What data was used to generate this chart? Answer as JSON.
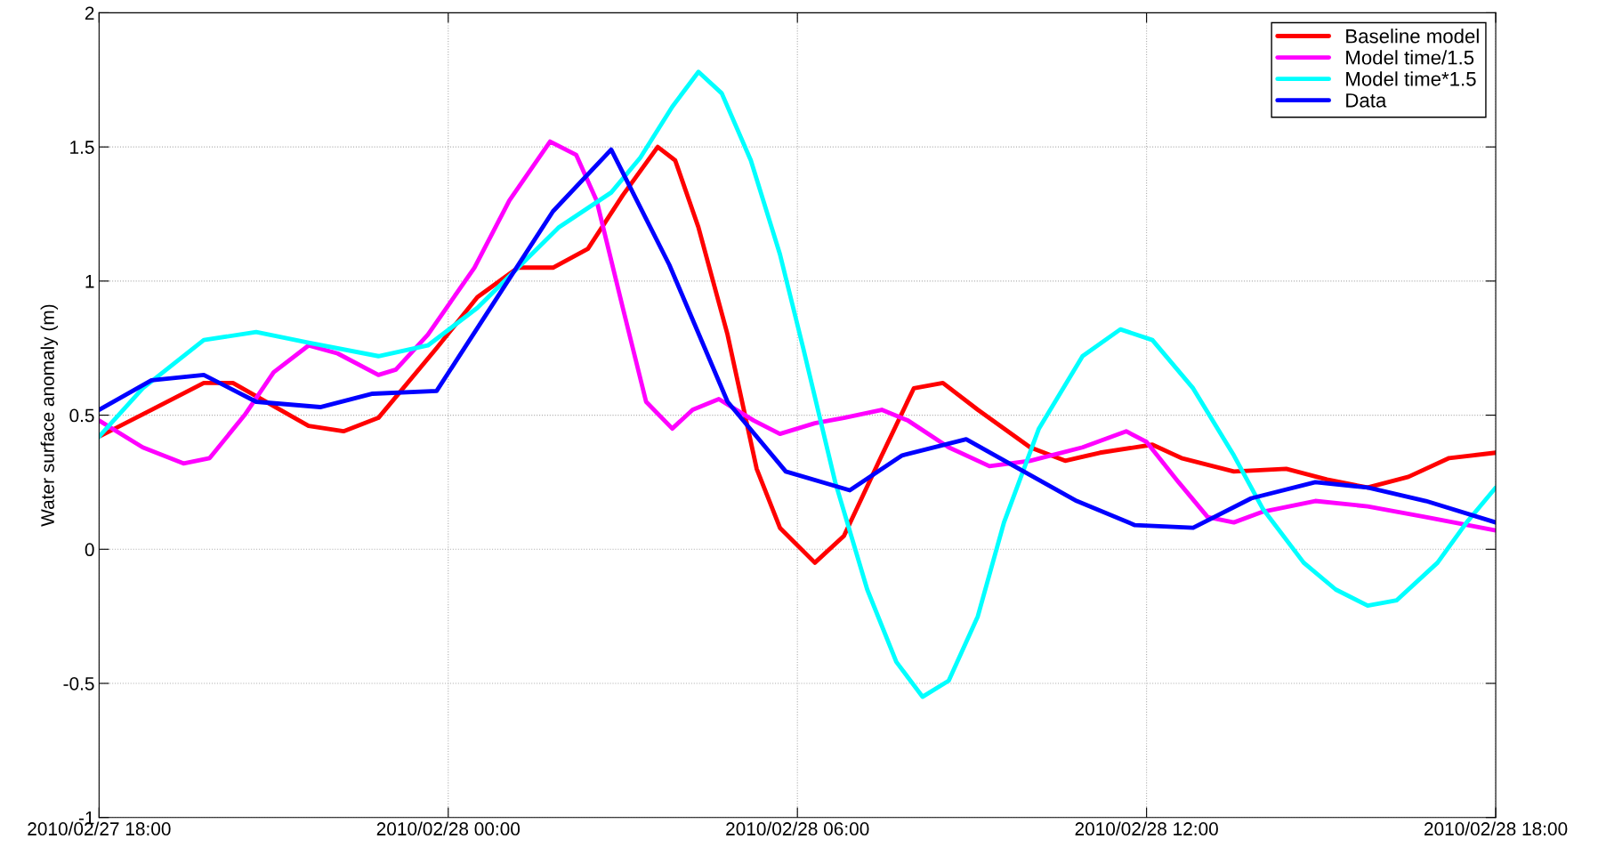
{
  "chart_data": {
    "type": "line",
    "ylabel": "Water surface anomaly (m)",
    "xlim": [
      "2010-02-27T18:00",
      "2010-02-28T18:00"
    ],
    "ylim": [
      -1,
      2
    ],
    "xticks": [
      {
        "value": "2010-02-27T18:00",
        "label": "2010/02/27 18:00"
      },
      {
        "value": "2010-02-28T00:00",
        "label": "2010/02/28 00:00"
      },
      {
        "value": "2010-02-28T06:00",
        "label": "2010/02/28 06:00"
      },
      {
        "value": "2010-02-28T12:00",
        "label": "2010/02/28 12:00"
      },
      {
        "value": "2010-02-28T18:00",
        "label": "2010/02/28 18:00"
      }
    ],
    "yticks": [
      -1,
      -0.5,
      0,
      0.5,
      1,
      1.5,
      2
    ],
    "grid": true,
    "legend": "top right",
    "line_style": "solid",
    "marker": "none",
    "series": [
      {
        "name": "Baseline model",
        "color": "#ff0000",
        "x": [
          "2010-02-27T18:00",
          "2010-02-27T18:54",
          "2010-02-27T19:48",
          "2010-02-27T20:18",
          "2010-02-27T21:36",
          "2010-02-27T22:12",
          "2010-02-27T22:48",
          "2010-02-27T23:48",
          "2010-02-28T00:30",
          "2010-02-28T01:12",
          "2010-02-28T01:48",
          "2010-02-28T02:24",
          "2010-02-28T03:00",
          "2010-02-28T03:36",
          "2010-02-28T03:54",
          "2010-02-28T04:18",
          "2010-02-28T04:48",
          "2010-02-28T05:18",
          "2010-02-28T05:42",
          "2010-02-28T06:18",
          "2010-02-28T06:48",
          "2010-02-28T07:27",
          "2010-02-28T08:00",
          "2010-02-28T08:30",
          "2010-02-28T09:06",
          "2010-02-28T10:00",
          "2010-02-28T10:36",
          "2010-02-28T11:12",
          "2010-02-28T12:06",
          "2010-02-28T12:36",
          "2010-02-28T13:30",
          "2010-02-28T14:24",
          "2010-02-28T15:06",
          "2010-02-28T15:48",
          "2010-02-28T16:30",
          "2010-02-28T17:12",
          "2010-02-28T18:00"
        ],
        "values": [
          0.42,
          0.52,
          0.62,
          0.62,
          0.46,
          0.44,
          0.49,
          0.75,
          0.94,
          1.05,
          1.05,
          1.12,
          1.32,
          1.5,
          1.45,
          1.2,
          0.8,
          0.3,
          0.08,
          -0.05,
          0.05,
          0.35,
          0.6,
          0.62,
          0.52,
          0.38,
          0.33,
          0.36,
          0.39,
          0.34,
          0.29,
          0.3,
          0.26,
          0.23,
          0.27,
          0.34,
          0.36
        ]
      },
      {
        "name": "Model time/1.5",
        "color": "#ff00ff",
        "x": [
          "2010-02-27T18:00",
          "2010-02-27T18:45",
          "2010-02-27T19:27",
          "2010-02-27T19:54",
          "2010-02-27T20:30",
          "2010-02-27T21:00",
          "2010-02-27T21:36",
          "2010-02-27T22:06",
          "2010-02-27T22:48",
          "2010-02-27T23:06",
          "2010-02-27T23:39",
          "2010-02-28T00:27",
          "2010-02-28T01:03",
          "2010-02-28T01:45",
          "2010-02-28T02:12",
          "2010-02-28T02:33",
          "2010-02-28T03:00",
          "2010-02-28T03:24",
          "2010-02-28T03:51",
          "2010-02-28T04:12",
          "2010-02-28T04:39",
          "2010-02-28T05:15",
          "2010-02-28T05:42",
          "2010-02-28T06:18",
          "2010-02-28T06:48",
          "2010-02-28T07:27",
          "2010-02-28T07:54",
          "2010-02-28T08:36",
          "2010-02-28T09:18",
          "2010-02-28T10:00",
          "2010-02-28T10:54",
          "2010-02-28T11:39",
          "2010-02-28T12:00",
          "2010-02-28T12:33",
          "2010-02-28T13:03",
          "2010-02-28T13:30",
          "2010-02-28T14:00",
          "2010-02-28T14:54",
          "2010-02-28T15:48",
          "2010-02-28T16:48",
          "2010-02-28T18:00"
        ],
        "values": [
          0.48,
          0.38,
          0.32,
          0.34,
          0.5,
          0.66,
          0.76,
          0.73,
          0.65,
          0.67,
          0.8,
          1.05,
          1.3,
          1.52,
          1.47,
          1.3,
          0.9,
          0.55,
          0.45,
          0.52,
          0.56,
          0.48,
          0.43,
          0.47,
          0.49,
          0.52,
          0.48,
          0.38,
          0.31,
          0.33,
          0.38,
          0.44,
          0.4,
          0.25,
          0.12,
          0.1,
          0.14,
          0.18,
          0.16,
          0.12,
          0.07
        ]
      },
      {
        "name": "Model time*1.5",
        "color": "#00ffff",
        "x": [
          "2010-02-27T18:00",
          "2010-02-27T18:45",
          "2010-02-27T19:48",
          "2010-02-27T20:42",
          "2010-02-27T21:36",
          "2010-02-27T22:48",
          "2010-02-27T23:39",
          "2010-02-28T00:30",
          "2010-02-28T01:12",
          "2010-02-28T01:54",
          "2010-02-28T02:48",
          "2010-02-28T03:18",
          "2010-02-28T03:51",
          "2010-02-28T04:18",
          "2010-02-28T04:42",
          "2010-02-28T05:12",
          "2010-02-28T05:42",
          "2010-02-28T06:06",
          "2010-02-28T06:39",
          "2010-02-28T07:12",
          "2010-02-28T07:42",
          "2010-02-28T08:09",
          "2010-02-28T08:36",
          "2010-02-28T09:06",
          "2010-02-28T09:33",
          "2010-02-28T10:09",
          "2010-02-28T10:54",
          "2010-02-28T11:33",
          "2010-02-28T12:06",
          "2010-02-28T12:48",
          "2010-02-28T13:30",
          "2010-02-28T14:00",
          "2010-02-28T14:42",
          "2010-02-28T15:15",
          "2010-02-28T15:48",
          "2010-02-28T16:18",
          "2010-02-28T17:00",
          "2010-02-28T17:30",
          "2010-02-28T18:00"
        ],
        "values": [
          0.42,
          0.6,
          0.78,
          0.81,
          0.77,
          0.72,
          0.76,
          0.9,
          1.05,
          1.2,
          1.33,
          1.46,
          1.65,
          1.78,
          1.7,
          1.45,
          1.1,
          0.75,
          0.25,
          -0.15,
          -0.42,
          -0.55,
          -0.49,
          -0.25,
          0.1,
          0.45,
          0.72,
          0.82,
          0.78,
          0.6,
          0.35,
          0.15,
          -0.05,
          -0.15,
          -0.21,
          -0.19,
          -0.05,
          0.1,
          0.23
        ]
      },
      {
        "name": "Data",
        "color": "#0000ff",
        "x": [
          "2010-02-27T18:00",
          "2010-02-27T18:54",
          "2010-02-27T19:48",
          "2010-02-27T20:42",
          "2010-02-27T21:48",
          "2010-02-27T22:42",
          "2010-02-27T23:48",
          "2010-02-28T01:48",
          "2010-02-28T02:48",
          "2010-02-28T03:48",
          "2010-02-28T04:48",
          "2010-02-28T05:48",
          "2010-02-28T06:54",
          "2010-02-28T07:48",
          "2010-02-28T08:54",
          "2010-02-28T10:48",
          "2010-02-28T11:48",
          "2010-02-28T12:48",
          "2010-02-28T13:48",
          "2010-02-28T14:54",
          "2010-02-28T15:48",
          "2010-02-28T16:48",
          "2010-02-28T18:00"
        ],
        "values": [
          0.52,
          0.63,
          0.65,
          0.55,
          0.53,
          0.58,
          0.59,
          1.26,
          1.49,
          1.06,
          0.55,
          0.29,
          0.22,
          0.35,
          0.41,
          0.18,
          0.09,
          0.08,
          0.19,
          0.25,
          0.23,
          0.18,
          0.1
        ]
      }
    ]
  }
}
